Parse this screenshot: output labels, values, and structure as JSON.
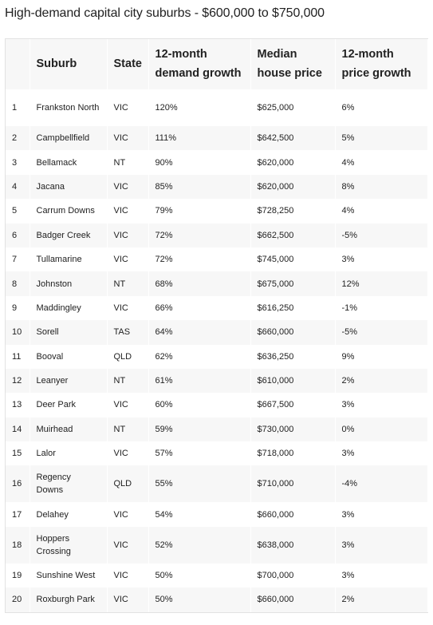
{
  "page": {
    "title": "High-demand capital city suburbs - $600,000 to $750,000"
  },
  "table": {
    "headers": {
      "rank": "",
      "suburb": "Suburb",
      "state": "State",
      "demand_growth": "12-month demand growth",
      "median_price": "Median house price",
      "price_growth": "12-month price growth"
    },
    "rows": [
      {
        "rank": "1",
        "suburb": "Frankston North",
        "state": "VIC",
        "demand_growth": "120%",
        "median_price": "$625,000",
        "price_growth": "6%"
      },
      {
        "rank": "2",
        "suburb": "Campbellfield",
        "state": "VIC",
        "demand_growth": "111%",
        "median_price": "$642,500",
        "price_growth": "5%"
      },
      {
        "rank": "3",
        "suburb": "Bellamack",
        "state": "NT",
        "demand_growth": "90%",
        "median_price": "$620,000",
        "price_growth": "4%"
      },
      {
        "rank": "4",
        "suburb": "Jacana",
        "state": "VIC",
        "demand_growth": "85%",
        "median_price": "$620,000",
        "price_growth": "8%"
      },
      {
        "rank": "5",
        "suburb": "Carrum Downs",
        "state": "VIC",
        "demand_growth": "79%",
        "median_price": "$728,250",
        "price_growth": "4%"
      },
      {
        "rank": "6",
        "suburb": "Badger Creek",
        "state": "VIC",
        "demand_growth": "72%",
        "median_price": "$662,500",
        "price_growth": "-5%"
      },
      {
        "rank": "7",
        "suburb": "Tullamarine",
        "state": "VIC",
        "demand_growth": "72%",
        "median_price": "$745,000",
        "price_growth": "3%"
      },
      {
        "rank": "8",
        "suburb": "Johnston",
        "state": "NT",
        "demand_growth": "68%",
        "median_price": "$675,000",
        "price_growth": "12%"
      },
      {
        "rank": "9",
        "suburb": "Maddingley",
        "state": "VIC",
        "demand_growth": "66%",
        "median_price": "$616,250",
        "price_growth": "-1%"
      },
      {
        "rank": "10",
        "suburb": "Sorell",
        "state": "TAS",
        "demand_growth": "64%",
        "median_price": "$660,000",
        "price_growth": "-5%"
      },
      {
        "rank": "11",
        "suburb": "Booval",
        "state": "QLD",
        "demand_growth": "62%",
        "median_price": "$636,250",
        "price_growth": "9%"
      },
      {
        "rank": "12",
        "suburb": "Leanyer",
        "state": "NT",
        "demand_growth": "61%",
        "median_price": "$610,000",
        "price_growth": "2%"
      },
      {
        "rank": "13",
        "suburb": "Deer Park",
        "state": "VIC",
        "demand_growth": "60%",
        "median_price": "$667,500",
        "price_growth": "3%"
      },
      {
        "rank": "14",
        "suburb": "Muirhead",
        "state": "NT",
        "demand_growth": "59%",
        "median_price": "$730,000",
        "price_growth": "0%"
      },
      {
        "rank": "15",
        "suburb": "Lalor",
        "state": "VIC",
        "demand_growth": "57%",
        "median_price": "$718,000",
        "price_growth": "3%"
      },
      {
        "rank": "16",
        "suburb": "Regency Downs",
        "state": "QLD",
        "demand_growth": "55%",
        "median_price": "$710,000",
        "price_growth": "-4%"
      },
      {
        "rank": "17",
        "suburb": "Delahey",
        "state": "VIC",
        "demand_growth": "54%",
        "median_price": "$660,000",
        "price_growth": "3%"
      },
      {
        "rank": "18",
        "suburb": "Hoppers Crossing",
        "state": "VIC",
        "demand_growth": "52%",
        "median_price": "$638,000",
        "price_growth": "3%"
      },
      {
        "rank": "19",
        "suburb": "Sunshine West",
        "state": "VIC",
        "demand_growth": "50%",
        "median_price": "$700,000",
        "price_growth": "3%"
      },
      {
        "rank": "20",
        "suburb": "Roxburgh Park",
        "state": "VIC",
        "demand_growth": "50%",
        "median_price": "$660,000",
        "price_growth": "2%"
      }
    ]
  }
}
